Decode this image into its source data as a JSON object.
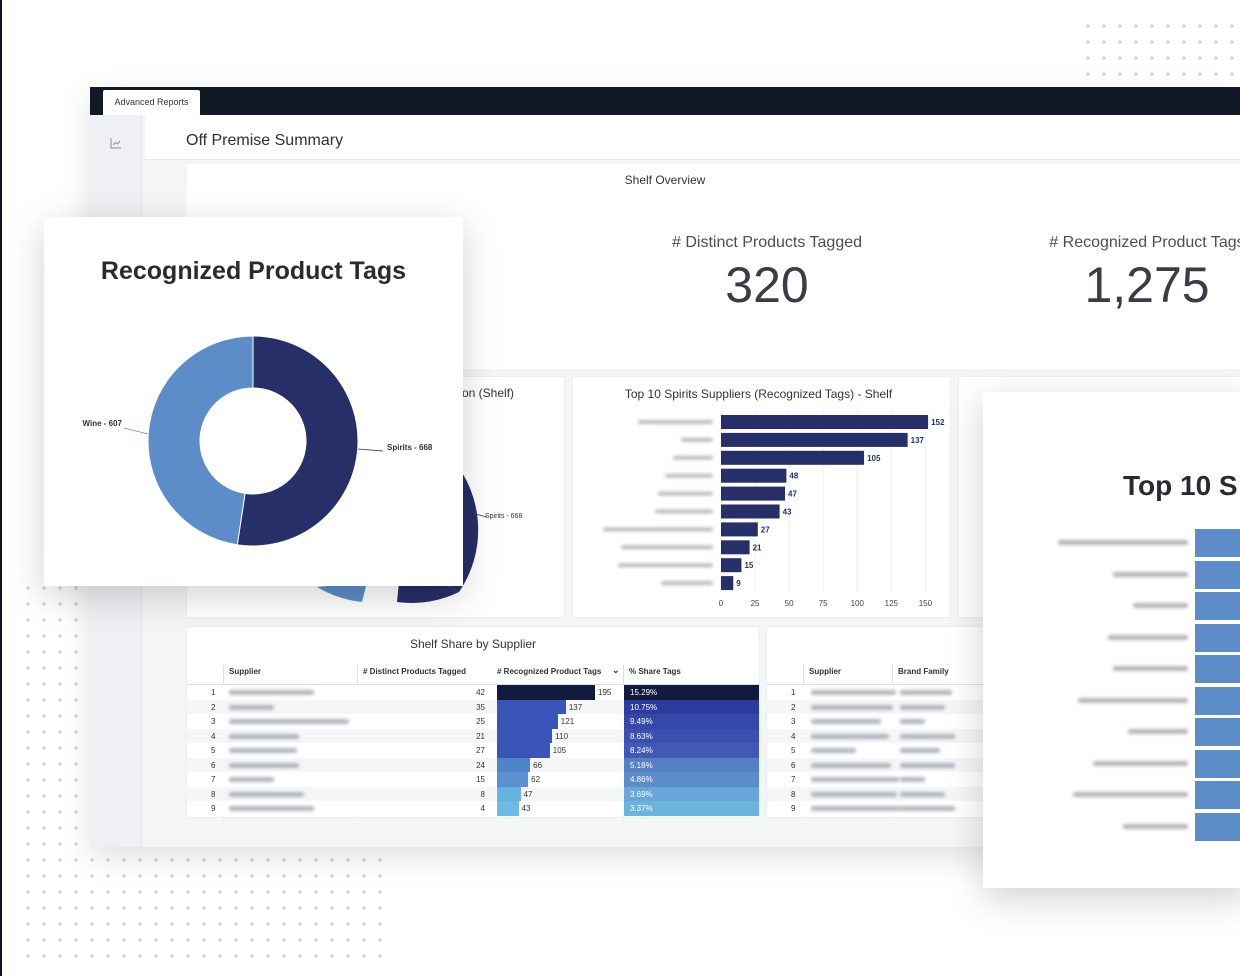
{
  "tab": {
    "label": "Advanced Reports"
  },
  "page": {
    "title": "Off Premise Summary"
  },
  "shelf_overview": {
    "title": "Shelf Overview",
    "kpis": [
      {
        "label": "# Distinct Products Tagged",
        "value": "320"
      },
      {
        "label": "# Recognized Product Tags",
        "value": "1,275"
      }
    ]
  },
  "bg_donut": {
    "title_fragment": "on (Shelf)",
    "label": "Spirits - 668"
  },
  "colors": {
    "dark": "#262f68",
    "mid": "#3a4fb0",
    "light": "#5d8dc9",
    "header": "#121826"
  },
  "chart_data": [
    {
      "type": "pie",
      "title": "Recognized Product Tags",
      "categories": [
        "Wine",
        "Spirits"
      ],
      "values": [
        607,
        668
      ],
      "labels": [
        "Wine - 607",
        "Spirits - 668"
      ],
      "colors": [
        "#5d8dc9",
        "#262f68"
      ]
    },
    {
      "type": "bar",
      "title": "Top 10 Spirits Suppliers (Recognized Tags) - Shelf",
      "orientation": "horizontal",
      "values": [
        152,
        137,
        105,
        48,
        47,
        43,
        27,
        21,
        15,
        9
      ],
      "xlim": [
        0,
        160
      ],
      "xticks": [
        "0",
        "25",
        "50",
        "75",
        "100",
        "125",
        "150"
      ],
      "color": "#262f68"
    },
    {
      "type": "bar",
      "title": "Top 10 S",
      "orientation": "horizontal",
      "color": "#5d8dc9"
    }
  ],
  "supplier_table": {
    "title": "Shelf Share by Supplier",
    "headers": [
      "Supplier",
      "# Distinct Products Tagged",
      "# Recognized Product Tags",
      "% Share Tags"
    ],
    "rows": [
      {
        "idx": "1",
        "distinct": "42",
        "tags": 195,
        "share": "15.29%"
      },
      {
        "idx": "2",
        "distinct": "35",
        "tags": 137,
        "share": "10.75%"
      },
      {
        "idx": "3",
        "distinct": "25",
        "tags": 121,
        "share": "9.49%"
      },
      {
        "idx": "4",
        "distinct": "21",
        "tags": 110,
        "share": "8.63%"
      },
      {
        "idx": "5",
        "distinct": "27",
        "tags": 105,
        "share": "8.24%"
      },
      {
        "idx": "6",
        "distinct": "24",
        "tags": 66,
        "share": "5.18%"
      },
      {
        "idx": "7",
        "distinct": "15",
        "tags": 62,
        "share": "4.86%"
      },
      {
        "idx": "8",
        "distinct": "8",
        "tags": 47,
        "share": "3.69%"
      },
      {
        "idx": "9",
        "distinct": "4",
        "tags": 43,
        "share": "3.37%"
      }
    ]
  },
  "brand_table": {
    "headers": [
      "Supplier",
      "Brand Family"
    ],
    "row_indices": [
      "1",
      "2",
      "3",
      "4",
      "5",
      "6",
      "7",
      "8",
      "9"
    ]
  }
}
